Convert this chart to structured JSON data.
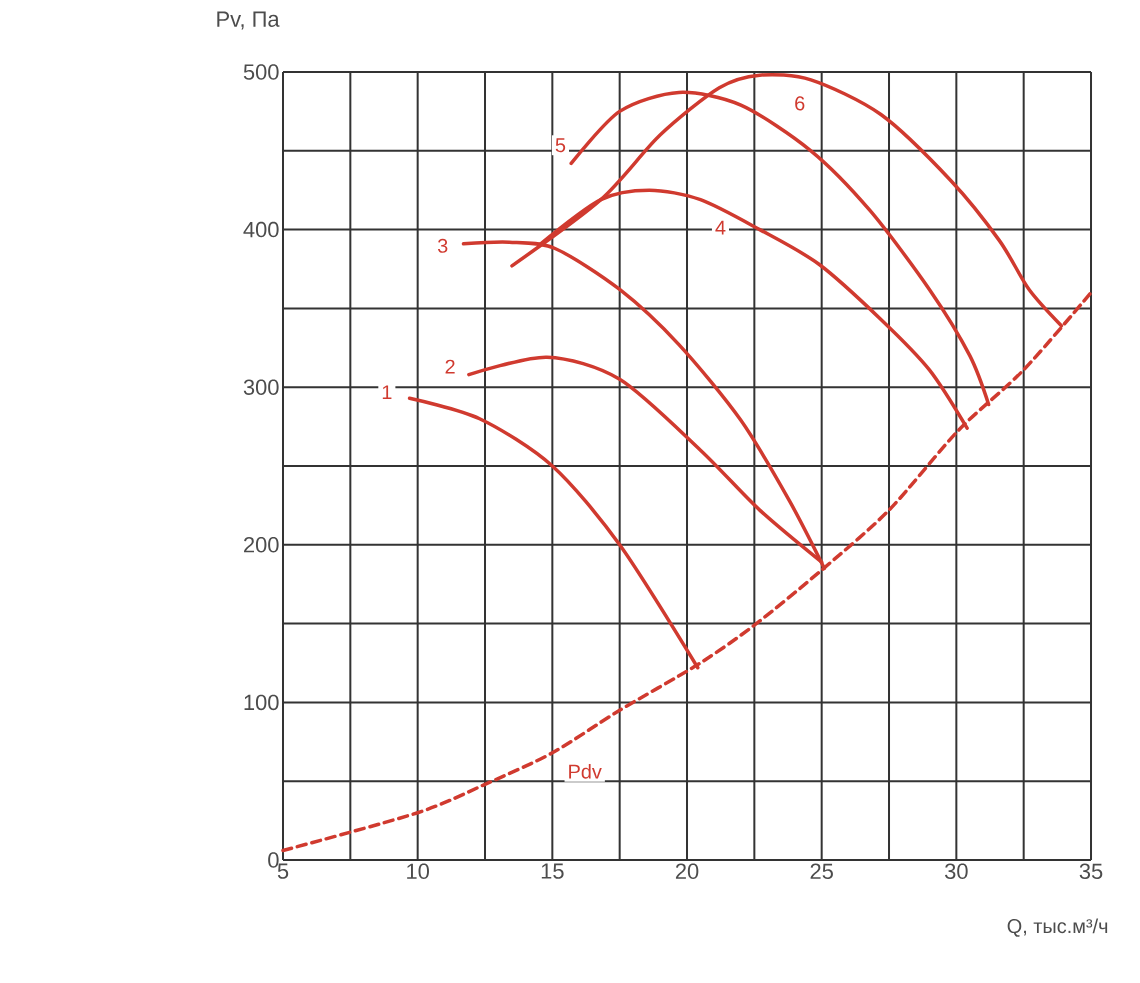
{
  "chart_data": {
    "type": "line",
    "xlabel": "Q, тыс.м³/ч",
    "ylabel": "Pv, Па",
    "xlim": [
      5,
      35
    ],
    "ylim": [
      0,
      500
    ],
    "xticks": [
      5,
      10,
      15,
      20,
      25,
      30,
      35
    ],
    "yticks": [
      0,
      100,
      200,
      300,
      400,
      500
    ],
    "grid": true,
    "marker": "none",
    "series": [
      {
        "name": "1",
        "color": "#d03a2f",
        "line_style": "solid",
        "x": [
          9.7,
          12.3,
          15,
          17.5,
          20.4
        ],
        "values": [
          293,
          280,
          250,
          200,
          122
        ]
      },
      {
        "name": "2",
        "color": "#d03a2f",
        "line_style": "solid",
        "x": [
          11.9,
          14.8,
          17.5,
          20.5,
          22.7,
          25
        ],
        "values": [
          308,
          319,
          305,
          260,
          222,
          189
        ]
      },
      {
        "name": "3",
        "color": "#d03a2f",
        "line_style": "solid",
        "x": [
          11.7,
          13.4,
          15.1,
          17.5,
          19.7,
          22,
          23.8,
          25.1
        ],
        "values": [
          391,
          392,
          388,
          362,
          327,
          279,
          228,
          185
        ]
      },
      {
        "name": "4",
        "color": "#d03a2f",
        "line_style": "solid",
        "x": [
          14.5,
          16.8,
          18.6,
          20.5,
          22.7,
          24.9,
          27.2,
          29,
          30.4
        ],
        "values": [
          390,
          419,
          425,
          419,
          400,
          378,
          343,
          311,
          274
        ]
      },
      {
        "name": "5",
        "color": "#d03a2f",
        "line_style": "solid",
        "x": [
          15.7,
          17.5,
          19.7,
          22,
          24.6,
          26.8,
          29,
          30.5,
          31.2
        ],
        "values": [
          442,
          475,
          487,
          479,
          450,
          412,
          362,
          320,
          289
        ]
      },
      {
        "name": "6",
        "color": "#d03a2f",
        "line_style": "solid",
        "x": [
          13.5,
          16.8,
          19,
          21.2,
          22.7,
          24.6,
          27.2,
          29.8,
          31.6,
          32.7,
          33.9
        ],
        "values": [
          377,
          419,
          460,
          490,
          498,
          495,
          473,
          431,
          393,
          362,
          339
        ]
      },
      {
        "name": "Pdv",
        "color": "#d03a2f",
        "line_style": "dashed",
        "x": [
          5,
          10,
          12.5,
          15,
          17.5,
          20.4,
          22.5,
          25,
          27.5,
          30.1,
          32.5,
          35
        ],
        "values": [
          6,
          30,
          48,
          68,
          95,
          124,
          149,
          184,
          222,
          273,
          311,
          360
        ]
      }
    ]
  }
}
